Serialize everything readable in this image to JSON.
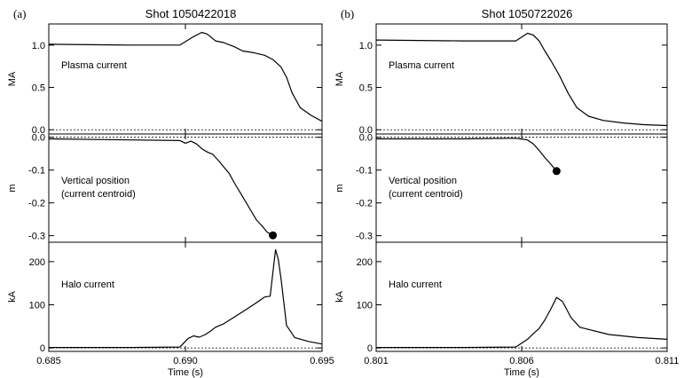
{
  "chart_data": [
    {
      "type": "line",
      "panel_label": "(a)",
      "title": "Shot 1050422018",
      "xlabel": "Time (s)",
      "xlim": [
        0.685,
        0.695
      ],
      "xticks": [
        "0.685",
        "0.690",
        "0.695"
      ],
      "xtick_values": [
        0.685,
        0.69,
        0.695
      ],
      "subplots": [
        {
          "ylabel": "MA",
          "ylim": [
            -0.05,
            1.25
          ],
          "yticks": [
            "0.0",
            "0.5",
            "1.0"
          ],
          "ytick_values": [
            0.0,
            0.5,
            1.0
          ],
          "annotation": [
            "Plasma current"
          ],
          "x": [
            0.685,
            0.688,
            0.6898,
            0.6903,
            0.6906,
            0.6908,
            0.6911,
            0.6914,
            0.6918,
            0.6921,
            0.6925,
            0.6929,
            0.6932,
            0.6935,
            0.6937,
            0.6939,
            0.6942,
            0.6946,
            0.695
          ],
          "y": [
            1.01,
            1.0,
            1.0,
            1.1,
            1.15,
            1.13,
            1.05,
            1.03,
            0.98,
            0.93,
            0.91,
            0.88,
            0.83,
            0.74,
            0.62,
            0.44,
            0.26,
            0.17,
            0.1
          ],
          "zero_line": true,
          "marker": null
        },
        {
          "ylabel": "m",
          "ylim": [
            -0.32,
            0.01
          ],
          "yticks": [
            "-0.3",
            "-0.2",
            "-0.1",
            "0.0"
          ],
          "ytick_values": [
            -0.3,
            -0.2,
            -0.1,
            0.0
          ],
          "annotation": [
            "Vertical position",
            "(current centroid)"
          ],
          "x": [
            0.685,
            0.688,
            0.6898,
            0.69,
            0.6902,
            0.6904,
            0.6906,
            0.6908,
            0.691,
            0.6912,
            0.6914,
            0.6916,
            0.6918,
            0.692,
            0.6922,
            0.6924,
            0.6926,
            0.6928,
            0.693,
            0.6932
          ],
          "y": [
            -0.005,
            -0.008,
            -0.01,
            -0.018,
            -0.012,
            -0.02,
            -0.035,
            -0.045,
            -0.052,
            -0.07,
            -0.09,
            -0.11,
            -0.14,
            -0.168,
            -0.196,
            -0.224,
            -0.252,
            -0.27,
            -0.29,
            -0.299
          ],
          "zero_line": true,
          "marker": {
            "x": 0.6932,
            "y": -0.299
          }
        },
        {
          "ylabel": "kA",
          "ylim": [
            -8,
            245
          ],
          "yticks": [
            "0",
            "100",
            "200"
          ],
          "ytick_values": [
            0,
            100,
            200
          ],
          "annotation": [
            "Halo current"
          ],
          "x": [
            0.685,
            0.688,
            0.6898,
            0.6901,
            0.6903,
            0.6905,
            0.6907,
            0.6909,
            0.6911,
            0.6914,
            0.6918,
            0.6922,
            0.6926,
            0.6929,
            0.6931,
            0.6933,
            0.6934,
            0.6935,
            0.6937,
            0.694,
            0.6945,
            0.695
          ],
          "y": [
            1,
            1,
            2,
            22,
            28,
            25,
            30,
            38,
            48,
            56,
            72,
            88,
            105,
            118,
            120,
            228,
            205,
            160,
            52,
            24,
            15,
            9
          ],
          "zero_line": true,
          "marker": null
        }
      ]
    },
    {
      "type": "line",
      "panel_label": "(b)",
      "title": "Shot 1050722026",
      "xlabel": "Time (s)",
      "xlim": [
        0.801,
        0.811
      ],
      "xticks": [
        "0.801",
        "0.806",
        "0.811"
      ],
      "xtick_values": [
        0.801,
        0.806,
        0.811
      ],
      "subplots": [
        {
          "ylabel": "MA",
          "ylim": [
            -0.05,
            1.25
          ],
          "yticks": [
            "0.0",
            "0.5",
            "1.0"
          ],
          "ytick_values": [
            0.0,
            0.5,
            1.0
          ],
          "annotation": [
            "Plasma current"
          ],
          "x": [
            0.801,
            0.804,
            0.8058,
            0.8062,
            0.8064,
            0.8066,
            0.8068,
            0.807,
            0.8073,
            0.8076,
            0.8079,
            0.8083,
            0.8088,
            0.8095,
            0.8102,
            0.811
          ],
          "y": [
            1.06,
            1.05,
            1.05,
            1.14,
            1.12,
            1.05,
            0.93,
            0.82,
            0.64,
            0.43,
            0.26,
            0.16,
            0.11,
            0.08,
            0.06,
            0.05
          ],
          "zero_line": true,
          "marker": null
        },
        {
          "ylabel": "m",
          "ylim": [
            -0.32,
            0.01
          ],
          "yticks": [
            "-0.3",
            "-0.2",
            "-0.1",
            "0.0"
          ],
          "ytick_values": [
            -0.3,
            -0.2,
            -0.1,
            0.0
          ],
          "annotation": [
            "Vertical position",
            "(current centroid)"
          ],
          "x": [
            0.801,
            0.804,
            0.8058,
            0.8062,
            0.8064,
            0.8066,
            0.8068,
            0.807,
            0.8072
          ],
          "y": [
            -0.005,
            -0.005,
            -0.003,
            -0.008,
            -0.02,
            -0.04,
            -0.062,
            -0.082,
            -0.103
          ],
          "zero_line": true,
          "marker": {
            "x": 0.8072,
            "y": -0.103
          }
        },
        {
          "ylabel": "kA",
          "ylim": [
            -8,
            245
          ],
          "yticks": [
            "0",
            "100",
            "200"
          ],
          "ytick_values": [
            0,
            100,
            200
          ],
          "annotation": [
            "Halo current"
          ],
          "x": [
            0.801,
            0.804,
            0.8058,
            0.8062,
            0.8064,
            0.8066,
            0.8068,
            0.807,
            0.8072,
            0.8074,
            0.8077,
            0.808,
            0.809,
            0.81,
            0.811
          ],
          "y": [
            1,
            1,
            2,
            20,
            33,
            45,
            65,
            90,
            117,
            108,
            70,
            48,
            31,
            24,
            20
          ],
          "zero_line": true,
          "marker": null
        }
      ]
    }
  ]
}
